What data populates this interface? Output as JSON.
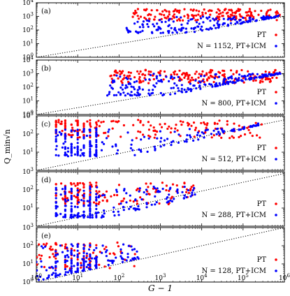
{
  "figure": {
    "ylabel": "Q_min√n",
    "xlabel": "G − 1"
  },
  "chart_data": {
    "type": "scatter",
    "xscale": "log",
    "yscale": "log",
    "xlim": [
      1,
      1000000
    ],
    "x_tick_labels": [
      "10^0",
      "10^1",
      "10^2",
      "10^3",
      "10^4",
      "10^5",
      "10^6"
    ],
    "grid": false,
    "colors": {
      "PT": "#ff0000",
      "PT+ICM": "#0000ff",
      "reference_line": "#000000"
    },
    "reference_line": {
      "style": "dotted",
      "x": [
        1,
        1000000
      ],
      "y_end_note": "rising line from lower-left to upper-right in each panel"
    },
    "panels": [
      {
        "tag": "(a)",
        "ylim": [
          1,
          10000
        ],
        "y_tick_labels": [
          "10^0",
          "10^1",
          "10^2",
          "10^3",
          "10^4"
        ],
        "ref_line": {
          "y_at_xmin": 0.5,
          "y_at_xmax": 1000
        },
        "legend": {
          "PT": "PT",
          "PT+ICM": "N = 1152, PT+ICM",
          "placement": "right"
        },
        "series": [
          {
            "name": "PT",
            "x_range": [
              200,
              800000
            ],
            "y_range": [
              500,
              3500
            ],
            "n": 180
          },
          {
            "name": "PT+ICM",
            "x_range": [
              150,
              800000
            ],
            "y_range": [
              60,
              1000
            ],
            "n": 180,
            "follows_line": true
          }
        ]
      },
      {
        "tag": "(b)",
        "ylim": [
          1,
          10000
        ],
        "y_tick_labels": [
          "10^0",
          "10^1",
          "10^2",
          "10^3",
          "10^4"
        ],
        "ref_line": {
          "y_at_xmin": 0.3,
          "y_at_xmax": 1000
        },
        "legend": {
          "PT": "PT",
          "PT+ICM": "N = 800, PT+ICM",
          "placement": "right"
        },
        "series": [
          {
            "name": "PT",
            "x_range": [
              60,
              800000
            ],
            "y_range": [
              200,
              2000
            ],
            "n": 200
          },
          {
            "name": "PT+ICM",
            "x_range": [
              50,
              800000
            ],
            "y_range": [
              25,
              1000
            ],
            "n": 220,
            "follows_line": true
          }
        ]
      },
      {
        "tag": "(c)",
        "ylim": [
          1,
          1000
        ],
        "y_tick_labels": [
          "10^1",
          "10^2",
          "10^3"
        ],
        "ref_line": {
          "y_at_xmin": 0.3,
          "y_at_xmax": 600
        },
        "legend": {
          "PT": "PT",
          "PT+ICM": "N = 512, PT+ICM",
          "placement": "right"
        },
        "series": [
          {
            "name": "PT",
            "x_range": [
              3,
              300000
            ],
            "y_range": [
              60,
              600
            ],
            "n": 220
          },
          {
            "name": "PT+ICM",
            "x_range": [
              3,
              300000
            ],
            "y_range": [
              6,
              200
            ],
            "n": 240,
            "follows_line": true
          }
        ]
      },
      {
        "tag": "(d)",
        "ylim": [
          1,
          1000
        ],
        "y_tick_labels": [
          "10^1",
          "10^2",
          "10^3"
        ],
        "ref_line": {
          "y_at_xmin": 0.25,
          "y_at_xmax": 800
        },
        "legend": {
          "PT": "PT",
          "PT+ICM": "N = 288, PT+ICM",
          "placement": "right"
        },
        "series": [
          {
            "name": "PT",
            "x_range": [
              3,
              7000
            ],
            "y_range": [
              15,
              250
            ],
            "n": 170
          },
          {
            "name": "PT+ICM",
            "x_range": [
              3,
              7000
            ],
            "y_range": [
              3,
              150
            ],
            "n": 230,
            "follows_line": true
          }
        ]
      },
      {
        "tag": "(e)",
        "ylim": [
          1,
          1000
        ],
        "y_tick_labels": [
          "10^0",
          "10^1",
          "10^2",
          "10^3"
        ],
        "ref_line": {
          "y_at_xmin": 1,
          "y_at_xmax": 1000
        },
        "legend": {
          "PT": "PT",
          "PT+ICM": "N = 128, PT+ICM",
          "placement": "right"
        },
        "series": [
          {
            "name": "PT",
            "x_range": [
              1,
              300
            ],
            "y_range": [
              5,
              150
            ],
            "n": 110
          },
          {
            "name": "PT+ICM",
            "x_range": [
              1,
              300
            ],
            "y_range": [
              1,
              120
            ],
            "n": 200,
            "follows_line": true
          }
        ]
      }
    ]
  }
}
